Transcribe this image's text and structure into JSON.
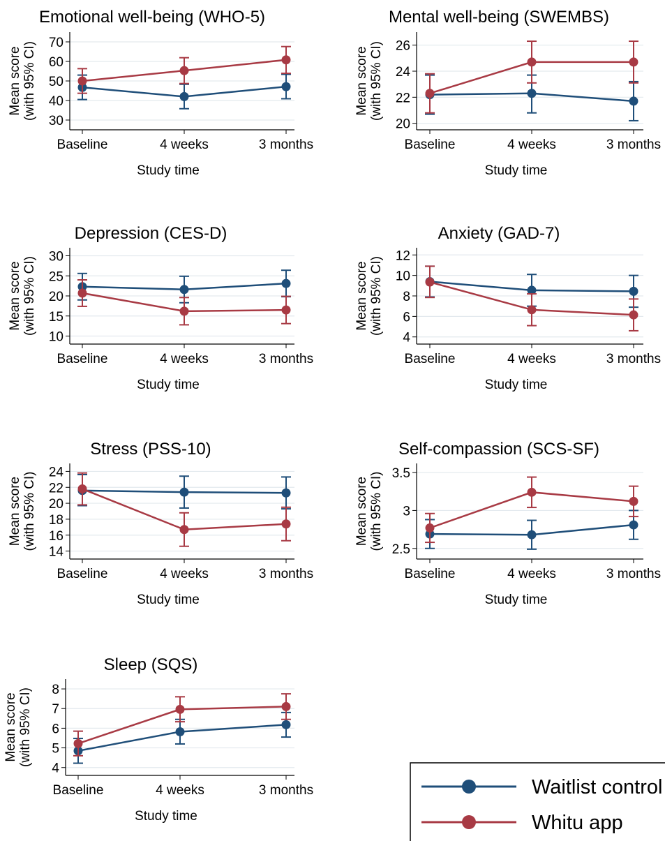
{
  "colors": {
    "Waitlist control": "#1f4e79",
    "Whitu app": "#a83a44"
  },
  "legend": {
    "placement": "bottom-right",
    "entries": [
      {
        "label": "Waitlist control",
        "color": "#1f4e79"
      },
      {
        "label": "Whitu app",
        "color": "#a83a44"
      }
    ]
  },
  "chart_data": [
    {
      "type": "line",
      "title": "Emotional well-being (WHO-5)",
      "xlabel": "Study time",
      "ylabel": [
        "Mean score",
        "(with 95% CI)"
      ],
      "categories": [
        "Baseline",
        "4 weeks",
        "3 months"
      ],
      "ylim": [
        25,
        75
      ],
      "yticks": [
        30,
        40,
        50,
        60,
        70
      ],
      "ytick_labels": [
        "30",
        "40",
        "50",
        "60",
        "70"
      ],
      "grid": true,
      "series": [
        {
          "name": "Waitlist control",
          "values": [
            46.7,
            42.0,
            47.1
          ],
          "ci_low": [
            40.5,
            35.8,
            40.9
          ],
          "ci_high": [
            53.0,
            48.3,
            53.4
          ]
        },
        {
          "name": "Whitu app",
          "values": [
            50.0,
            55.3,
            60.8
          ],
          "ci_low": [
            43.7,
            48.7,
            53.9
          ],
          "ci_high": [
            56.3,
            61.9,
            67.6
          ]
        }
      ]
    },
    {
      "type": "line",
      "title": "Mental well-being (SWEMBS)",
      "xlabel": "Study time",
      "ylabel": [
        "Mean score",
        "(with 95% CI)"
      ],
      "categories": [
        "Baseline",
        "4 weeks",
        "3 months"
      ],
      "ylim": [
        19.5,
        27
      ],
      "yticks": [
        20,
        22,
        24,
        26
      ],
      "ytick_labels": [
        "20",
        "22",
        "24",
        "26"
      ],
      "grid": true,
      "series": [
        {
          "name": "Waitlist control",
          "values": [
            22.2,
            22.3,
            21.7
          ],
          "ci_low": [
            20.7,
            20.8,
            20.2
          ],
          "ci_high": [
            23.7,
            23.7,
            23.2
          ]
        },
        {
          "name": "Whitu app",
          "values": [
            22.3,
            24.7,
            24.7
          ],
          "ci_low": [
            20.8,
            23.1,
            23.1
          ],
          "ci_high": [
            23.8,
            26.3,
            26.3
          ]
        }
      ]
    },
    {
      "type": "line",
      "title": "Depression (CES-D)",
      "xlabel": "Study time",
      "ylabel": [
        "Mean score",
        "(with 95% CI)"
      ],
      "categories": [
        "Baseline",
        "4 weeks",
        "3 months"
      ],
      "ylim": [
        8,
        32
      ],
      "yticks": [
        10,
        15,
        20,
        25,
        30
      ],
      "ytick_labels": [
        "10",
        "15",
        "20",
        "25",
        "30"
      ],
      "grid": true,
      "series": [
        {
          "name": "Waitlist control",
          "values": [
            22.3,
            21.6,
            23.1
          ],
          "ci_low": [
            19.0,
            18.3,
            19.8
          ],
          "ci_high": [
            25.6,
            24.9,
            26.4
          ]
        },
        {
          "name": "Whitu app",
          "values": [
            20.7,
            16.2,
            16.5
          ],
          "ci_low": [
            17.4,
            12.8,
            13.1
          ],
          "ci_high": [
            24.0,
            19.6,
            19.9
          ]
        }
      ]
    },
    {
      "type": "line",
      "title": "Anxiety (GAD-7)",
      "xlabel": "Study time",
      "ylabel": [
        "Mean score",
        "(with 95% CI)"
      ],
      "categories": [
        "Baseline",
        "4 weeks",
        "3 months"
      ],
      "ylim": [
        3.3,
        12.7
      ],
      "yticks": [
        4,
        6,
        8,
        10,
        12
      ],
      "ytick_labels": [
        "4",
        "6",
        "8",
        "10",
        "12"
      ],
      "grid": true,
      "series": [
        {
          "name": "Waitlist control",
          "values": [
            9.4,
            8.55,
            8.45
          ],
          "ci_low": [
            7.9,
            7.0,
            6.9
          ],
          "ci_high": [
            10.9,
            10.1,
            10.0
          ]
        },
        {
          "name": "Whitu app",
          "values": [
            9.35,
            6.65,
            6.15
          ],
          "ci_low": [
            7.85,
            5.1,
            4.6
          ],
          "ci_high": [
            10.9,
            8.2,
            7.7
          ]
        }
      ]
    },
    {
      "type": "line",
      "title": "Stress (PSS-10)",
      "xlabel": "Study time",
      "ylabel": [
        "Mean score",
        "(with 95% CI)"
      ],
      "categories": [
        "Baseline",
        "4 weeks",
        "3 months"
      ],
      "ylim": [
        13,
        25
      ],
      "yticks": [
        14,
        16,
        18,
        20,
        22,
        24
      ],
      "ytick_labels": [
        "14",
        "16",
        "18",
        "20",
        "22",
        "24"
      ],
      "grid": true,
      "series": [
        {
          "name": "Waitlist control",
          "values": [
            21.6,
            21.4,
            21.3
          ],
          "ci_low": [
            19.7,
            19.4,
            19.3
          ],
          "ci_high": [
            23.6,
            23.4,
            23.3
          ]
        },
        {
          "name": "Whitu app",
          "values": [
            21.8,
            16.7,
            17.4
          ],
          "ci_low": [
            19.8,
            14.6,
            15.3
          ],
          "ci_high": [
            23.8,
            18.8,
            19.5
          ]
        }
      ]
    },
    {
      "type": "line",
      "title": "Self-compassion (SCS-SF)",
      "xlabel": "Study time",
      "ylabel": [
        "Mean score",
        "(with 95% CI)"
      ],
      "categories": [
        "Baseline",
        "4 weeks",
        "3 months"
      ],
      "ylim": [
        2.36,
        3.62
      ],
      "yticks": [
        2.5,
        3.0,
        3.5
      ],
      "ytick_labels": [
        "2.5",
        "3",
        "3.5"
      ],
      "grid": true,
      "series": [
        {
          "name": "Waitlist control",
          "values": [
            2.69,
            2.68,
            2.81
          ],
          "ci_low": [
            2.5,
            2.49,
            2.62
          ],
          "ci_high": [
            2.88,
            2.87,
            3.0
          ]
        },
        {
          "name": "Whitu app",
          "values": [
            2.77,
            3.24,
            3.12
          ],
          "ci_low": [
            2.58,
            3.04,
            2.92
          ],
          "ci_high": [
            2.96,
            3.44,
            3.32
          ]
        }
      ]
    },
    {
      "type": "line",
      "title": "Sleep (SQS)",
      "xlabel": "Study time",
      "ylabel": [
        "Mean score",
        "(with 95% CI)"
      ],
      "categories": [
        "Baseline",
        "4 weeks",
        "3 months"
      ],
      "ylim": [
        3.6,
        8.5
      ],
      "yticks": [
        4,
        5,
        6,
        7,
        8
      ],
      "ytick_labels": [
        "4",
        "5",
        "6",
        "7",
        "8"
      ],
      "grid": true,
      "series": [
        {
          "name": "Waitlist control",
          "values": [
            4.85,
            5.82,
            6.18
          ],
          "ci_low": [
            4.22,
            5.2,
            5.55
          ],
          "ci_high": [
            5.48,
            6.45,
            6.8
          ]
        },
        {
          "name": "Whitu app",
          "values": [
            5.22,
            6.96,
            7.1
          ],
          "ci_low": [
            4.6,
            6.33,
            6.45
          ],
          "ci_high": [
            5.85,
            7.6,
            7.75
          ]
        }
      ]
    }
  ]
}
